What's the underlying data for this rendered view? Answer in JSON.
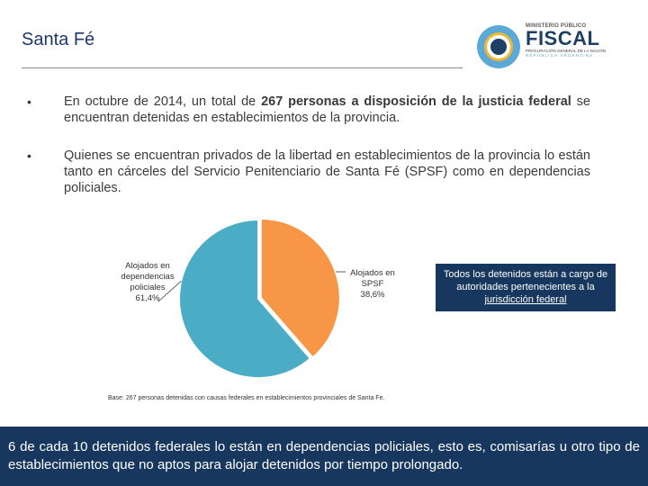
{
  "header": {
    "title": "Santa Fé",
    "logo": {
      "top_line": "MINISTERIO PÚBLICO",
      "name": "FISCAL",
      "sub_line_1": "PROCURACIÓN GENERAL DE LA NACIÓN",
      "sub_line_2": "REPÚBLICA ARGENTINA",
      "colors": {
        "sun_outer": "#5aa9d6",
        "sun_ring": "#f2b632",
        "sun_core": "#1e3f66"
      }
    }
  },
  "bullets": [
    {
      "pre": "En octubre de 2014, un total de ",
      "bold": "267 personas a disposición de la justicia federal",
      "post": " se encuentran detenidas en establecimientos de la provincia."
    },
    {
      "text": "Quienes se encuentran privados de la libertad en establecimientos de la provincia lo están tanto en cárceles del Servicio Penitenciario de Santa Fé (SPSF) como en dependencias policiales."
    }
  ],
  "chart_data": {
    "type": "pie",
    "slices": [
      {
        "label_lines": [
          "Alojados en",
          "SPSF",
          "38,6%"
        ],
        "value": 38.6,
        "color": "#f79646"
      },
      {
        "label_lines": [
          "Alojados en",
          "dependencias",
          "policiales",
          "61,4%"
        ],
        "value": 61.4,
        "color": "#4bacc6"
      }
    ],
    "start_angle_deg": 0,
    "direction": "clockwise"
  },
  "callout": {
    "text": "Todos los detenidos están a cargo de autoridades pertenecientes a la ",
    "underlined": "jurisdicción federal"
  },
  "base_note": "Base: 267 personas detenidas con causas federales en establecimientos provinciales de Santa Fe.",
  "footer": {
    "text": "6 de cada 10 detenidos federales lo están en dependencias policiales, esto es, comisarías u otro tipo de establecimientos que no aptos para alojar detenidos por tiempo prolongado."
  }
}
